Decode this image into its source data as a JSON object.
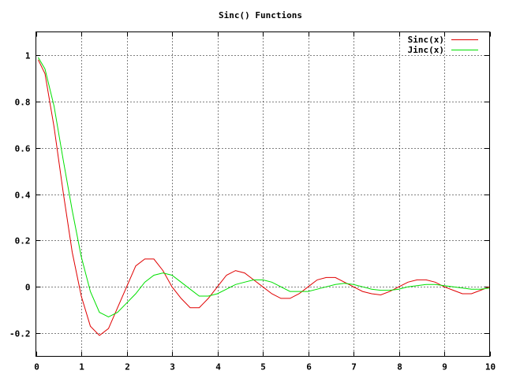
{
  "chart_data": {
    "type": "line",
    "title": "Sinc() Functions",
    "xlabel": "",
    "ylabel": "",
    "xlim": [
      0,
      10
    ],
    "ylim": [
      -0.3,
      1.1
    ],
    "grid": true,
    "legend_position": "top-right",
    "x_ticks": [
      0,
      1,
      2,
      3,
      4,
      5,
      6,
      7,
      8,
      9,
      10
    ],
    "x_tick_labels": [
      "0",
      "1",
      "2",
      "3",
      "4",
      "5",
      "6",
      "7",
      "8",
      "9",
      "10"
    ],
    "y_ticks": [
      -0.2,
      0,
      0.2,
      0.4,
      0.6,
      0.8,
      1
    ],
    "y_tick_labels": [
      "-0.2",
      "0",
      "0.2",
      "0.4",
      "0.6",
      "0.8",
      "1"
    ],
    "series": [
      {
        "name": "Sinc(x)",
        "color": "#e00000",
        "x": [
          0.05,
          0.2,
          0.4,
          0.6,
          0.8,
          1.0,
          1.2,
          1.4,
          1.6,
          1.8,
          2.0,
          2.2,
          2.4,
          2.6,
          2.8,
          3.0,
          3.2,
          3.4,
          3.6,
          3.8,
          4.0,
          4.2,
          4.4,
          4.6,
          4.8,
          5.0,
          5.2,
          5.4,
          5.6,
          5.8,
          6.0,
          6.2,
          6.4,
          6.6,
          6.8,
          7.0,
          7.2,
          7.4,
          7.6,
          7.8,
          8.0,
          8.2,
          8.4,
          8.6,
          8.8,
          9.0,
          9.2,
          9.4,
          9.6,
          9.8,
          10.0
        ],
        "values": [
          0.98,
          0.92,
          0.69,
          0.41,
          0.15,
          -0.04,
          -0.17,
          -0.21,
          -0.18,
          -0.09,
          0.0,
          0.09,
          0.12,
          0.12,
          0.07,
          0.0,
          -0.05,
          -0.09,
          -0.09,
          -0.05,
          0.0,
          0.05,
          0.07,
          0.06,
          0.03,
          0.0,
          -0.03,
          -0.05,
          -0.05,
          -0.03,
          0.0,
          0.03,
          0.04,
          0.04,
          0.02,
          0.0,
          -0.02,
          -0.03,
          -0.035,
          -0.02,
          0.0,
          0.02,
          0.03,
          0.03,
          0.02,
          0.0,
          -0.015,
          -0.03,
          -0.03,
          -0.015,
          0.0
        ]
      },
      {
        "name": "Jinc(x)",
        "color": "#00e000",
        "x": [
          0.05,
          0.2,
          0.4,
          0.6,
          0.8,
          1.0,
          1.2,
          1.4,
          1.6,
          1.8,
          2.0,
          2.2,
          2.4,
          2.6,
          2.8,
          3.0,
          3.2,
          3.4,
          3.6,
          3.8,
          4.0,
          4.2,
          4.4,
          4.6,
          4.8,
          5.0,
          5.2,
          5.4,
          5.6,
          5.8,
          6.0,
          6.2,
          6.4,
          6.6,
          6.8,
          7.0,
          7.2,
          7.4,
          7.6,
          7.8,
          8.0,
          8.2,
          8.4,
          8.6,
          8.8,
          9.0,
          9.2,
          9.4,
          9.6,
          9.8,
          10.0
        ],
        "values": [
          0.99,
          0.94,
          0.78,
          0.55,
          0.33,
          0.13,
          -0.02,
          -0.11,
          -0.13,
          -0.11,
          -0.07,
          -0.03,
          0.02,
          0.05,
          0.06,
          0.05,
          0.02,
          -0.01,
          -0.04,
          -0.04,
          -0.03,
          -0.01,
          0.01,
          0.02,
          0.03,
          0.03,
          0.02,
          0.0,
          -0.02,
          -0.02,
          -0.02,
          -0.01,
          0.0,
          0.01,
          0.015,
          0.01,
          0.0,
          -0.01,
          -0.015,
          -0.015,
          -0.01,
          0.0,
          0.005,
          0.01,
          0.01,
          0.005,
          0.0,
          -0.005,
          -0.01,
          -0.01,
          -0.005
        ]
      }
    ]
  }
}
